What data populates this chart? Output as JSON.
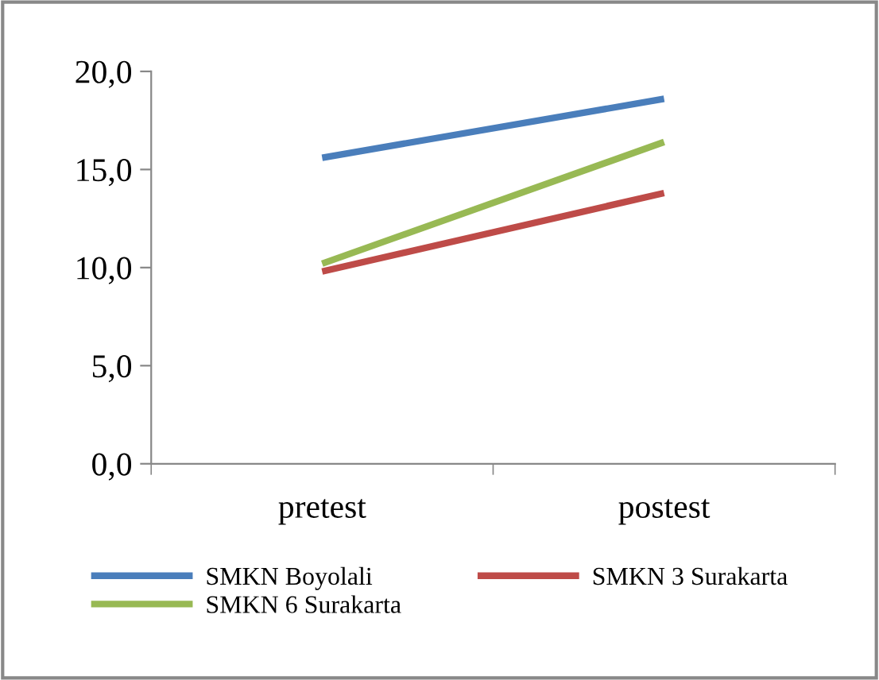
{
  "chart_data": {
    "type": "line",
    "categories": [
      "pretest",
      "postest"
    ],
    "series": [
      {
        "name": "SMKN Boyolali",
        "color": "#4a7ebb",
        "values": [
          15.6,
          18.6
        ]
      },
      {
        "name": "SMKN 3 Surakarta",
        "color": "#be4b48",
        "values": [
          9.8,
          13.8
        ]
      },
      {
        "name": "SMKN 6 Surakarta",
        "color": "#98b954",
        "values": [
          10.2,
          16.4
        ]
      }
    ],
    "ylim": [
      0,
      20
    ],
    "yticks": [
      {
        "value": 0,
        "label": "0,0"
      },
      {
        "value": 5,
        "label": "5,0"
      },
      {
        "value": 10,
        "label": "10,0"
      },
      {
        "value": 15,
        "label": "15,0"
      },
      {
        "value": 20,
        "label": "20,0"
      }
    ],
    "grid": false,
    "legend": "bottom",
    "marker": "none",
    "line_style": "solid"
  }
}
